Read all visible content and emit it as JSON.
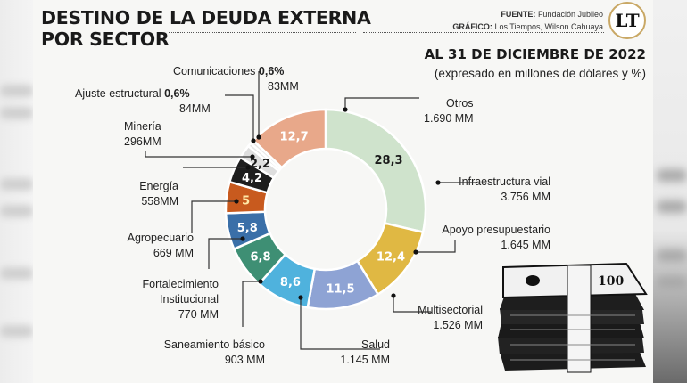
{
  "header": {
    "title_line1": "DESTINO DE LA DEUDA EXTERNA",
    "title_line2": "POR SECTOR",
    "source_label": "FUENTE:",
    "source_value": "Fundación Jubileo",
    "graphic_label": "GRÁFICO:",
    "graphic_value": "Los Tiempos, Wilson Cahuaya",
    "logo_text": "LT",
    "date": "AL 31 DE DICIEMBRE DE 2022",
    "subtitle": "(expresado en millones de dólares y %)"
  },
  "chart_data": {
    "type": "pie",
    "variant": "donut",
    "title": "DESTINO DE LA DEUDA EXTERNA POR SECTOR",
    "subtitle": "AL 31 DE DICIEMBRE DE 2022 (expresado en millones de dólares y %)",
    "unit_value": "MM (millones de dólares)",
    "unit_share": "%",
    "slices": [
      {
        "name": "Infraestructura vial",
        "percent": 28.3,
        "percent_label": "28,3",
        "value_mm": 3756,
        "value_label": "3.756 MM",
        "color": "#cfe3cc",
        "text_color": "#1a1a1a"
      },
      {
        "name": "Apoyo presupuestario",
        "percent": 12.4,
        "percent_label": "12,4",
        "value_mm": 1645,
        "value_label": "1.645 MM",
        "color": "#e0b843",
        "text_color": "#ffffff"
      },
      {
        "name": "Multisectorial",
        "percent": 11.5,
        "percent_label": "11,5",
        "value_mm": 1526,
        "value_label": "1.526 MM",
        "color": "#8ea3d4",
        "text_color": "#ffffff"
      },
      {
        "name": "Salud",
        "percent": 8.6,
        "percent_label": "8,6",
        "value_mm": 1145,
        "value_label": "1.145 MM",
        "color": "#4fb2dd",
        "text_color": "#ffffff"
      },
      {
        "name": "Saneamiento básico",
        "percent": 6.8,
        "percent_label": "6,8",
        "value_mm": 903,
        "value_label": "903 MM",
        "color": "#3e8f74",
        "text_color": "#ffffff"
      },
      {
        "name": "Fortalecimiento Institucional",
        "percent": 5.8,
        "percent_label": "5,8",
        "value_mm": 770,
        "value_label": "770 MM",
        "color": "#3a6fa8",
        "text_color": "#ffffff"
      },
      {
        "name": "Agropecuario",
        "percent": 5.0,
        "percent_label": "5",
        "value_mm": 669,
        "value_label": "669 MM",
        "color": "#c85a1e",
        "text_color": "#ffe9a8"
      },
      {
        "name": "Energía",
        "percent": 4.2,
        "percent_label": "4,2",
        "value_mm": 558,
        "value_label": "558MM",
        "color": "#1e1e1e",
        "text_color": "#ffffff"
      },
      {
        "name": "Minería",
        "percent": 2.2,
        "percent_label": "2,2",
        "value_mm": 296,
        "value_label": "296MM",
        "color": "#dedede",
        "text_color": "#1a1a1a"
      },
      {
        "name": "Ajuste estructural",
        "percent": 0.6,
        "percent_label": "0,6%",
        "value_mm": 84,
        "value_label": "84MM",
        "color": "#e6e6e6",
        "text_color": "#1a1a1a"
      },
      {
        "name": "Comunicaciones",
        "percent": 0.6,
        "percent_label": "0,6%",
        "value_mm": 83,
        "value_label": "83MM",
        "color": "#e6e6e6",
        "text_color": "#1a1a1a"
      },
      {
        "name": "Otros",
        "percent": 12.7,
        "percent_label": "12,7",
        "value_mm": 1690,
        "value_label": "1.690 MM",
        "color": "#e8a88a",
        "text_color": "#ffffff"
      }
    ],
    "start": "top, clockwise",
    "legend": "callout labels around donut"
  },
  "labels": {
    "otros": {
      "name": "Otros",
      "value": "1.690 MM"
    },
    "infra": {
      "name": "Infraestructura vial",
      "value": "3.756 MM"
    },
    "apoyo": {
      "name": "Apoyo presupuestario",
      "value": "1.645 MM"
    },
    "multi": {
      "name": "Multisectorial",
      "value": "1.526 MM"
    },
    "salud": {
      "name": "Salud",
      "value": "1.145 MM"
    },
    "saneamiento": {
      "name": "Saneamiento básico",
      "value": "903 MM"
    },
    "fortalecimiento": {
      "name1": "Fortalecimiento",
      "name2": "Institucional",
      "value": "770 MM"
    },
    "agro": {
      "name": "Agropecuario",
      "value": "669 MM"
    },
    "energia": {
      "name": "Energía",
      "value": "558MM"
    },
    "mineria": {
      "name": "Minería",
      "value": "296MM"
    },
    "ajuste": {
      "name": "Ajuste estructural",
      "pct": "0,6%",
      "value": "84MM"
    },
    "comunicaciones": {
      "name": "Comunicaciones",
      "pct": "0,6%",
      "value": "83MM"
    }
  },
  "illustration": {
    "name": "money-stack",
    "bill_denomination": "100"
  }
}
